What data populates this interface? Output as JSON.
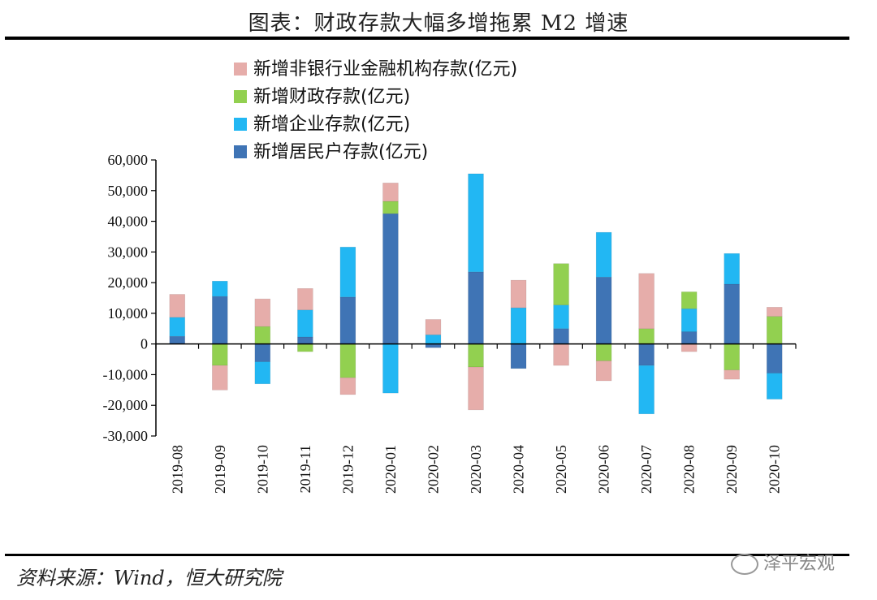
{
  "header": {
    "title": "图表：财政存款大幅多增拖累 M2 增速"
  },
  "footer": {
    "source": "资料来源：Wind，恒大研究院",
    "watermark": "泽平宏观"
  },
  "colors": {
    "nonbank": "#e6adaa",
    "fiscal": "#92d050",
    "enterprise": "#22b7f3",
    "household": "#3f74b5"
  },
  "chart_data": {
    "type": "bar",
    "stacked": true,
    "categories": [
      "2019-08",
      "2019-09",
      "2019-10",
      "2019-11",
      "2019-12",
      "2020-01",
      "2020-02",
      "2020-03",
      "2020-04",
      "2020-05",
      "2020-06",
      "2020-07",
      "2020-08",
      "2020-09",
      "2020-10"
    ],
    "series": [
      {
        "name": "新增居民户存款(亿元)",
        "key": "household",
        "values": [
          2500,
          15500,
          -5800,
          2300,
          15300,
          42500,
          -1200,
          23500,
          -8000,
          5000,
          21800,
          -7000,
          4000,
          19500,
          -9500
        ]
      },
      {
        "name": "新增企业存款(亿元)",
        "key": "enterprise",
        "values": [
          6200,
          5000,
          -7200,
          8800,
          16300,
          -16000,
          3000,
          32000,
          11800,
          7700,
          14600,
          -15800,
          7500,
          10000,
          -8500
        ]
      },
      {
        "name": "新增财政存款(亿元)",
        "key": "fiscal",
        "values": [
          0,
          -7000,
          5700,
          -2500,
          -11000,
          4000,
          0,
          -7500,
          0,
          13500,
          -5500,
          5000,
          5500,
          -8500,
          9000
        ]
      },
      {
        "name": "新增非银行业金融机构存款(亿元)",
        "key": "nonbank",
        "values": [
          7500,
          -8000,
          9000,
          7000,
          -5500,
          6000,
          5000,
          -14000,
          9000,
          -7000,
          -6500,
          18000,
          -2500,
          -3000,
          3000
        ]
      }
    ],
    "legend_order": [
      "nonbank",
      "fiscal",
      "enterprise",
      "household"
    ],
    "ylim": [
      -30000,
      60000
    ],
    "yticks": [
      -30000,
      -20000,
      -10000,
      0,
      10000,
      20000,
      30000,
      40000,
      50000,
      60000
    ],
    "ytick_labels": [
      "-30,000",
      "-20,000",
      "-10,000",
      "0",
      "10,000",
      "20,000",
      "30,000",
      "40,000",
      "50,000",
      "60,000"
    ],
    "legend_position": "top-left",
    "grid": false
  }
}
